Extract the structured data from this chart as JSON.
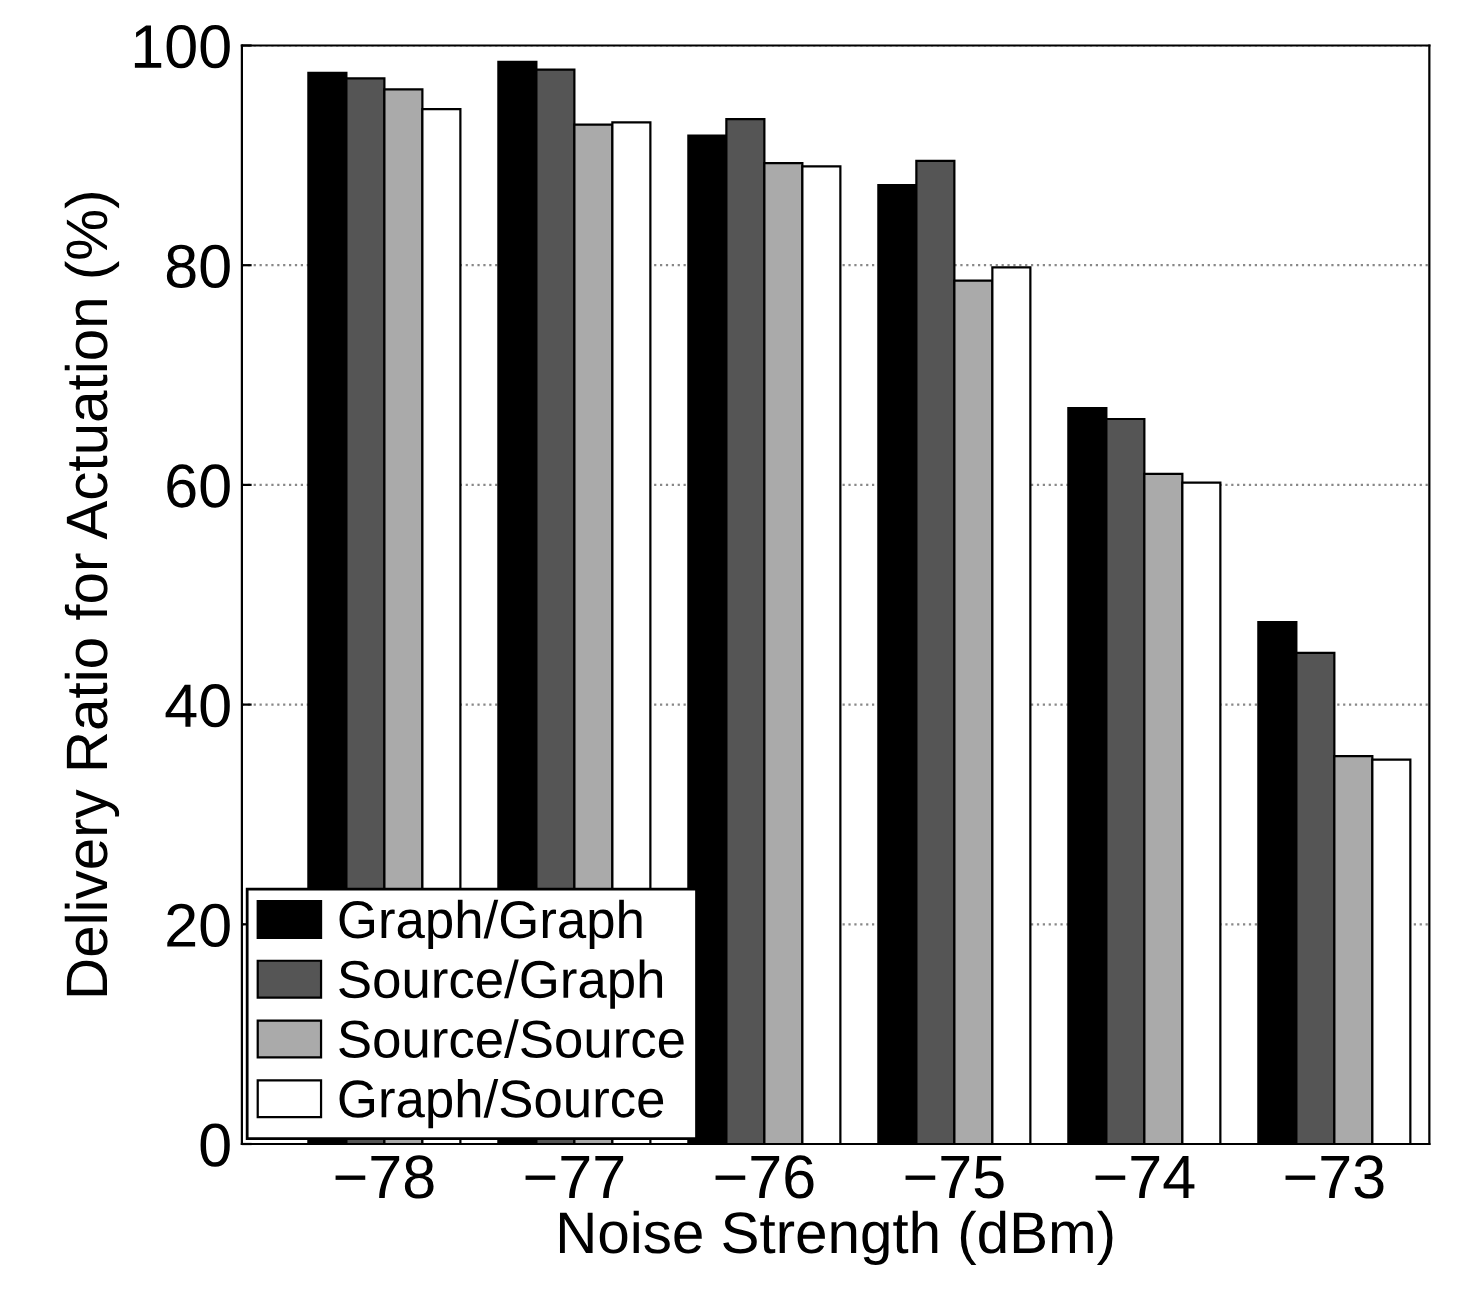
{
  "chart_data": {
    "type": "bar",
    "xlabel": "Noise Strength (dBm)",
    "ylabel": "Delivery Ratio for Actuation (%)",
    "categories": [
      "−78",
      "−77",
      "−76",
      "−75",
      "−74",
      "−73"
    ],
    "series": [
      {
        "name": "Graph/Graph",
        "color": "#000000",
        "values": [
          97.5,
          98.5,
          91.8,
          87.3,
          67,
          47.5
        ]
      },
      {
        "name": "Source/Graph",
        "color": "#555555",
        "values": [
          97,
          97.8,
          93.3,
          89.5,
          66,
          44.7
        ]
      },
      {
        "name": "Source/Source",
        "color": "#aaaaaa",
        "values": [
          96,
          92.8,
          89.3,
          78.6,
          61,
          35.3
        ]
      },
      {
        "name": "Graph/Source",
        "color": "#ffffff",
        "values": [
          94.2,
          93,
          89,
          79.8,
          60.2,
          35
        ]
      }
    ],
    "ylim": [
      0,
      100
    ],
    "yticks": [
      0,
      20,
      40,
      60,
      80,
      100
    ],
    "grid": "y",
    "legend": "bottom left"
  }
}
